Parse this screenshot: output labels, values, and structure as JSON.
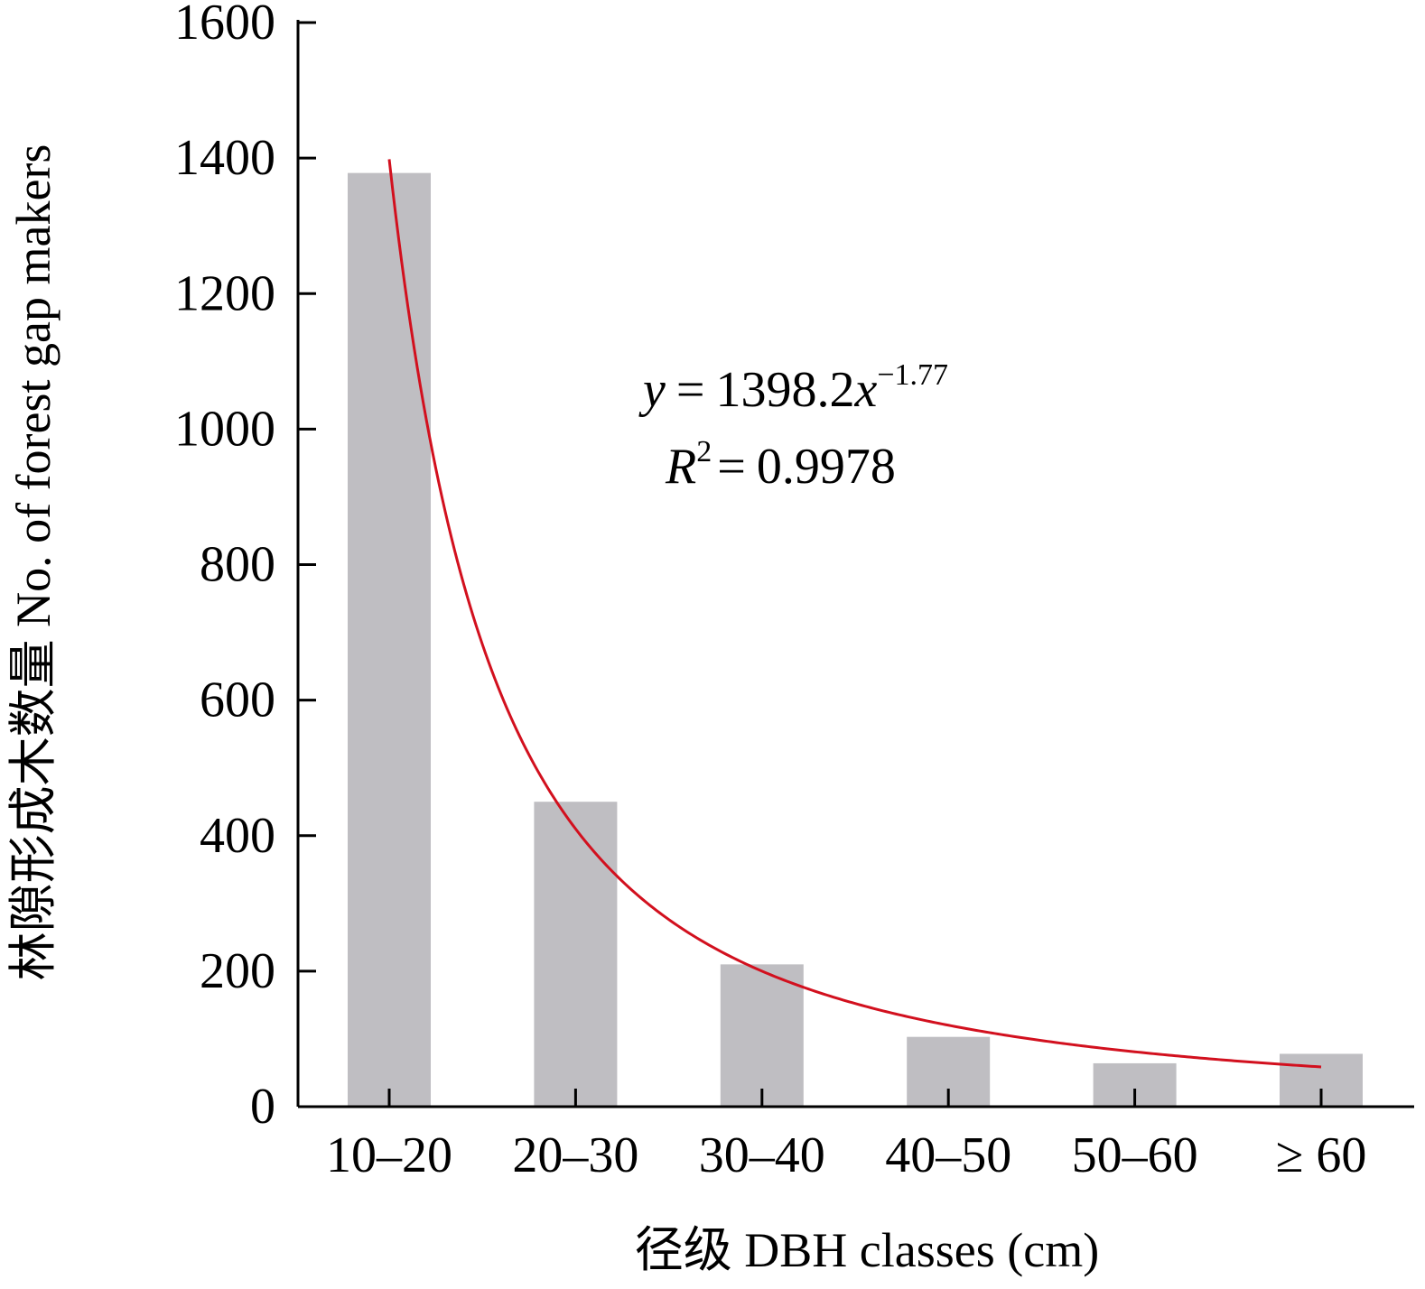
{
  "chart_data": {
    "type": "bar",
    "categories": [
      "10–20",
      "20–30",
      "30–40",
      "40–50",
      "50–60",
      "≥ 60"
    ],
    "values": [
      1378,
      450,
      210,
      103,
      64,
      78
    ],
    "ylabel": "林隙形成木数量 No. of forest gap makers",
    "xlabel": "径级 DBH classes (cm)",
    "ylim": [
      0,
      1600
    ],
    "yticks": [
      0,
      200,
      400,
      600,
      800,
      1000,
      1200,
      1400,
      1600
    ],
    "bar_color": "#bfbec2",
    "fit": {
      "type": "power",
      "coefficient": 1398.2,
      "exponent": -1.77,
      "color": "#d2101e",
      "equation": {
        "y_symbol": "y",
        "equals": "=",
        "coefficient_text": "1398.2",
        "x_symbol": "x",
        "exponent_text": "−1.77",
        "r_symbol": "R",
        "r_exponent": "2",
        "r_value": "0.9978"
      }
    },
    "grid": false
  }
}
